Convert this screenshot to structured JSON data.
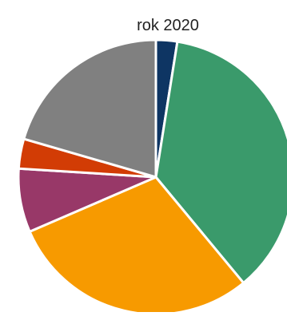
{
  "chart_data": {
    "type": "pie",
    "title": "rok 2020",
    "slices": [
      {
        "value": 2.5,
        "color": "#0e3563"
      },
      {
        "value": 36.5,
        "color": "#3a9a6b"
      },
      {
        "value": 29.5,
        "color": "#f79a00"
      },
      {
        "value": 7.5,
        "color": "#983868"
      },
      {
        "value": 3.5,
        "color": "#d23c05"
      },
      {
        "value": 20.5,
        "color": "#808080"
      }
    ],
    "start_angle_deg": 0,
    "direction": "clockwise",
    "legend": "none"
  }
}
